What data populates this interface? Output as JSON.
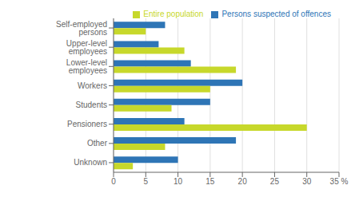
{
  "chart_data": {
    "type": "bar",
    "orientation": "horizontal",
    "categories": [
      "Unknown",
      "Other",
      "Pensioners",
      "Students",
      "Workers",
      "Lower-level employees",
      "Upper-level employees",
      "Self-employed persons"
    ],
    "series": [
      {
        "name": "Persons suspected of offences",
        "color": "#2e75b6",
        "values": [
          10,
          19,
          11,
          15,
          20,
          12,
          7,
          8
        ]
      },
      {
        "name": "Entire population",
        "color": "#c7d82b",
        "values": [
          3,
          8,
          30,
          9,
          15,
          19,
          11,
          5
        ]
      }
    ],
    "xlim": [
      0,
      35
    ],
    "xticks": [
      0,
      5,
      10,
      15,
      20,
      25,
      30,
      {
        "value": 35,
        "label": "35 %"
      }
    ],
    "grid": true,
    "legend": "upper right"
  }
}
